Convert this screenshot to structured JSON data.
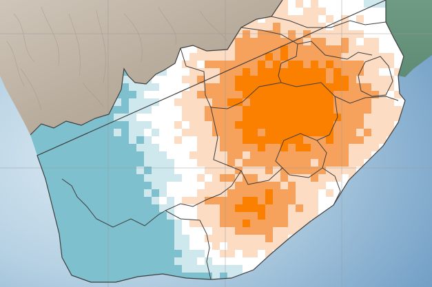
{
  "map": {
    "colors": {
      "ocean_deep": "#6e9cc4",
      "ocean_light": "#dbe9f2",
      "land_relief": "#bdb2a4",
      "land_vegetation": "#6e9a80",
      "anomaly_strong": "#fb8000",
      "anomaly_mid": "#f7a25c",
      "anomaly_light": "#fcdcc3",
      "neutral": "#ffffff",
      "anomaly_negative_light": "#cfe8ee",
      "anomaly_negative": "#7fc0ce",
      "border": "#3c3c3c",
      "graticule": "#9a9a9a"
    }
  }
}
